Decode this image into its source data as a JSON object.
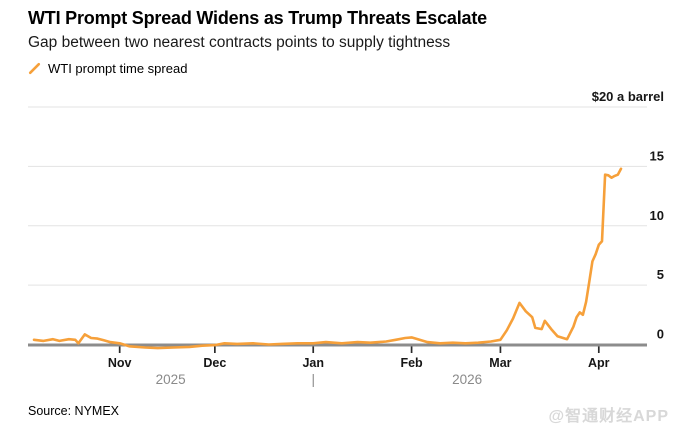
{
  "header": {
    "title": "WTI Prompt Spread Widens as Trump Threats Escalate",
    "subtitle": "Gap between two nearest contracts points to supply tightness",
    "legend": {
      "label": "WTI prompt time spread",
      "marker": "slash-icon"
    }
  },
  "footer": {
    "source": "Source: NYMEX",
    "watermark": "@智通财经APP"
  },
  "colors": {
    "line": "#F6A03A",
    "grid": "#e3e3e3",
    "baseline": "#8c8c8c",
    "tick": "#2b2b2b",
    "tick_label": "#161616",
    "year_label": "#8a8a8a",
    "watermark": "#d8d8d8"
  },
  "chart_data": {
    "type": "line",
    "title": "WTI Prompt Spread Widens as Trump Threats Escalate",
    "subtitle": "Gap between two nearest contracts points to supply tightness",
    "grid": true,
    "legend_position": "top-left",
    "y_axis": {
      "unit_label": "$20 a barrel",
      "ylim": [
        -0.5,
        20
      ],
      "ticks": [
        {
          "value": 0,
          "label": "0"
        },
        {
          "value": 5,
          "label": "5"
        },
        {
          "value": 10,
          "label": "10"
        },
        {
          "value": 15,
          "label": "15"
        },
        {
          "value": 20,
          "label": "$20 a barrel"
        }
      ]
    },
    "x_axis": {
      "range": [
        "2025-10-05",
        "2026-04-08"
      ],
      "ticks": [
        {
          "date": "2025-11-01",
          "label": "Nov"
        },
        {
          "date": "2025-12-01",
          "label": "Dec"
        },
        {
          "date": "2026-01-01",
          "label": "Jan"
        },
        {
          "date": "2026-02-01",
          "label": "Feb"
        },
        {
          "date": "2026-03-01",
          "label": "Mar"
        },
        {
          "date": "2026-04-01",
          "label": "Apr"
        }
      ],
      "year_labels": [
        "2025",
        "2026"
      ],
      "year_divider": {
        "date": "2026-01-01",
        "glyph": "|"
      }
    },
    "series": [
      {
        "name": "WTI prompt time spread",
        "color": "#F6A03A",
        "points": [
          [
            "2025-10-05",
            0.4
          ],
          [
            "2025-10-08",
            0.3
          ],
          [
            "2025-10-11",
            0.45
          ],
          [
            "2025-10-13",
            0.3
          ],
          [
            "2025-10-16",
            0.45
          ],
          [
            "2025-10-18",
            0.4
          ],
          [
            "2025-10-19",
            0.1
          ],
          [
            "2025-10-21",
            0.85
          ],
          [
            "2025-10-23",
            0.55
          ],
          [
            "2025-10-25",
            0.5
          ],
          [
            "2025-10-27",
            0.35
          ],
          [
            "2025-10-29",
            0.2
          ],
          [
            "2025-11-01",
            0.1
          ],
          [
            "2025-11-04",
            -0.15
          ],
          [
            "2025-11-09",
            -0.25
          ],
          [
            "2025-11-13",
            -0.3
          ],
          [
            "2025-11-18",
            -0.25
          ],
          [
            "2025-11-23",
            -0.2
          ],
          [
            "2025-11-27",
            -0.1
          ],
          [
            "2025-12-01",
            -0.05
          ],
          [
            "2025-12-04",
            0.1
          ],
          [
            "2025-12-08",
            0.05
          ],
          [
            "2025-12-13",
            0.1
          ],
          [
            "2025-12-18",
            0.0
          ],
          [
            "2025-12-22",
            0.05
          ],
          [
            "2025-12-27",
            0.1
          ],
          [
            "2026-01-01",
            0.1
          ],
          [
            "2026-01-05",
            0.2
          ],
          [
            "2026-01-10",
            0.1
          ],
          [
            "2026-01-15",
            0.2
          ],
          [
            "2026-01-19",
            0.15
          ],
          [
            "2026-01-24",
            0.25
          ],
          [
            "2026-01-27",
            0.4
          ],
          [
            "2026-01-30",
            0.55
          ],
          [
            "2026-02-01",
            0.6
          ],
          [
            "2026-02-03",
            0.45
          ],
          [
            "2026-02-06",
            0.2
          ],
          [
            "2026-02-10",
            0.1
          ],
          [
            "2026-02-14",
            0.15
          ],
          [
            "2026-02-18",
            0.1
          ],
          [
            "2026-02-22",
            0.15
          ],
          [
            "2026-02-26",
            0.25
          ],
          [
            "2026-03-01",
            0.4
          ],
          [
            "2026-03-03",
            1.2
          ],
          [
            "2026-03-05",
            2.2
          ],
          [
            "2026-03-07",
            3.5
          ],
          [
            "2026-03-09",
            2.8
          ],
          [
            "2026-03-11",
            2.3
          ],
          [
            "2026-03-12",
            1.4
          ],
          [
            "2026-03-14",
            1.3
          ],
          [
            "2026-03-15",
            2.0
          ],
          [
            "2026-03-17",
            1.3
          ],
          [
            "2026-03-19",
            0.7
          ],
          [
            "2026-03-22",
            0.45
          ],
          [
            "2026-03-24",
            1.5
          ],
          [
            "2026-03-25",
            2.3
          ],
          [
            "2026-03-26",
            2.7
          ],
          [
            "2026-03-27",
            2.5
          ],
          [
            "2026-03-28",
            3.6
          ],
          [
            "2026-03-29",
            5.3
          ],
          [
            "2026-03-30",
            7.0
          ],
          [
            "2026-03-31",
            7.6
          ],
          [
            "2026-04-01",
            8.4
          ],
          [
            "2026-04-02",
            8.7
          ],
          [
            "2026-04-03",
            14.3
          ],
          [
            "2026-04-04",
            14.25
          ],
          [
            "2026-04-05",
            14.05
          ],
          [
            "2026-04-06",
            14.2
          ],
          [
            "2026-04-07",
            14.3
          ],
          [
            "2026-04-08",
            14.8
          ]
        ]
      }
    ]
  }
}
